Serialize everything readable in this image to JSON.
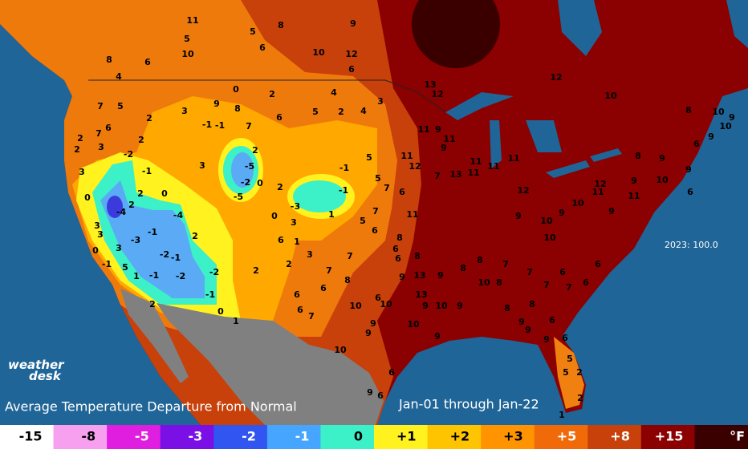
{
  "logo": {
    "line1": "weather",
    "line2": "desk"
  },
  "title": "Average Temperature Departure from Normal",
  "period": "Jan-01 through Jan-22",
  "annotation": "2023: 100.0",
  "legend": {
    "unit": "°F",
    "items": [
      {
        "label": "-15",
        "color": "#ffffff"
      },
      {
        "label": "-8",
        "color": "#f7a0f0"
      },
      {
        "label": "-5",
        "color": "#e01ee0"
      },
      {
        "label": "-3",
        "color": "#7a10e6"
      },
      {
        "label": "-2",
        "color": "#3055f0"
      },
      {
        "label": "-1",
        "color": "#45a5ff"
      },
      {
        "label": "0",
        "color": "#3cf0c8"
      },
      {
        "label": "+1",
        "color": "#fff21e"
      },
      {
        "label": "+2",
        "color": "#ffc400"
      },
      {
        "label": "+3",
        "color": "#ff9400"
      },
      {
        "label": "+5",
        "color": "#f06a0a"
      },
      {
        "label": "+8",
        "color": "#c8400a"
      },
      {
        "label": "+15",
        "color": "#8b0000"
      },
      {
        "label": null,
        "color": "#3a0000"
      }
    ]
  },
  "stations": [
    11,
    5,
    10,
    5,
    8,
    6,
    10,
    12,
    8,
    4,
    6,
    9,
    6,
    0,
    9,
    2,
    8,
    3,
    7,
    5,
    6,
    2,
    7,
    2,
    2,
    3,
    2,
    3,
    -2,
    -1,
    -1,
    7,
    6,
    5,
    2,
    4,
    3,
    4,
    2,
    -5,
    -2,
    0,
    2,
    -5,
    3,
    -1,
    2,
    0,
    0,
    -4,
    2,
    -4,
    -1,
    -3,
    3,
    3,
    3,
    0,
    -1,
    5,
    1,
    -1,
    -2,
    -2,
    -1,
    -2,
    -1,
    2,
    0,
    1,
    2,
    2,
    0,
    -3,
    3,
    6,
    1,
    2,
    3,
    -1,
    1,
    -1,
    5,
    5,
    7,
    5,
    7,
    6,
    6,
    8,
    11,
    6,
    6,
    7,
    7,
    8,
    6,
    6,
    6,
    7,
    10,
    10,
    6,
    9,
    9,
    10,
    9,
    8,
    13,
    9,
    13,
    10,
    9,
    10,
    9,
    9,
    8,
    10,
    8,
    8,
    7,
    7,
    7,
    6,
    7,
    6,
    6,
    8,
    8,
    9,
    9,
    6,
    9,
    6,
    5,
    5,
    2,
    2,
    1,
    6,
    6,
    9,
    12,
    13,
    9,
    11,
    9,
    11,
    11,
    12,
    7,
    13,
    11,
    11,
    11,
    11,
    12,
    9,
    9,
    10,
    10,
    10,
    11,
    9,
    12,
    11,
    9,
    10,
    9,
    8,
    6,
    9,
    6,
    9,
    10,
    9,
    10,
    8,
    10,
    12
  ]
}
